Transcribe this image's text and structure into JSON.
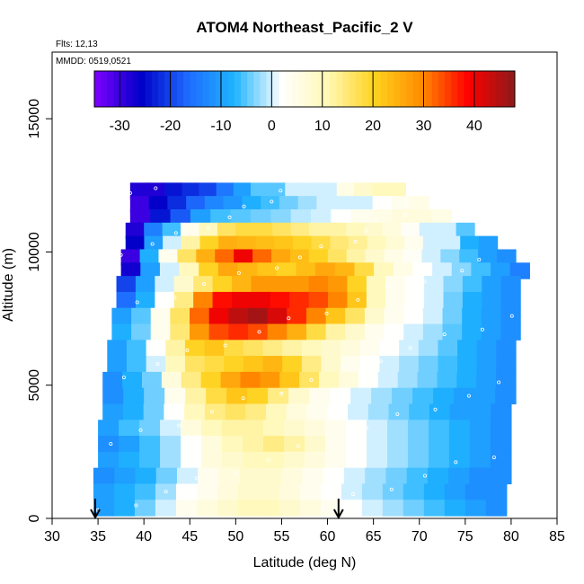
{
  "chart_data": {
    "type": "heatmap",
    "title": "ATOM4 Northeast_Pacific_2 V",
    "annotations": [
      "Flts: 12,13",
      "MMDD: 0519,0521"
    ],
    "xlabel": "Latitude (deg N)",
    "ylabel": "Altitude (m)",
    "xlim": [
      30,
      85
    ],
    "ylim": [
      0,
      17500
    ],
    "x_ticks": [
      30,
      35,
      40,
      45,
      50,
      55,
      60,
      65,
      70,
      75,
      80,
      85
    ],
    "y_ticks": [
      0,
      5000,
      10000,
      15000
    ],
    "grid": false,
    "colorbar": {
      "placement": "top-inside",
      "range": [
        -35,
        48
      ],
      "ticks": [
        -30,
        -20,
        -10,
        0,
        10,
        20,
        30,
        40
      ],
      "colors": [
        "#7f00ff",
        "#0000c8",
        "#1e6bff",
        "#1fb4ff",
        "#ffffff",
        "#fff8b4",
        "#ffd21e",
        "#ff8c00",
        "#ff0000",
        "#8c1a1a"
      ]
    },
    "markers": [
      {
        "name": "arrow-1",
        "x": 34.7,
        "y": 0
      },
      {
        "name": "arrow-2",
        "x": 61.2,
        "y": 0
      }
    ],
    "rows": [
      {
        "alt": 12300,
        "xmin": 38.5,
        "xmax": 68.5,
        "values": [
          -28,
          -28,
          -24,
          -22,
          -20,
          -15,
          -10,
          -5,
          -5,
          0,
          0,
          0,
          5,
          8,
          10,
          10
        ]
      },
      {
        "alt": 11800,
        "xmin": 38.5,
        "xmax": 71,
        "values": [
          -30,
          -26,
          -22,
          -17,
          -13,
          -11,
          -8,
          -6,
          -4,
          -2,
          0,
          0,
          0,
          2,
          4,
          5
        ]
      },
      {
        "alt": 11300,
        "xmin": 38.5,
        "xmax": 73.5,
        "values": [
          -30,
          -24,
          -18,
          -10,
          -6,
          -5,
          -4,
          -3,
          -1,
          0,
          2,
          4,
          5,
          6,
          6,
          5
        ]
      },
      {
        "alt": 10800,
        "xmin": 38,
        "xmax": 76,
        "values": [
          -28,
          -14,
          -6,
          4,
          10,
          16,
          18,
          18,
          16,
          14,
          12,
          12,
          10,
          8,
          6,
          3,
          0,
          0,
          -5
        ]
      },
      {
        "alt": 10300,
        "xmin": 38,
        "xmax": 78.5,
        "values": [
          -26,
          -10,
          0,
          12,
          20,
          25,
          24,
          23,
          22,
          20,
          18,
          15,
          13,
          10,
          7,
          4,
          0,
          0,
          -8,
          -10
        ]
      },
      {
        "alt": 9800,
        "xmin": 37.5,
        "xmax": 80.5,
        "values": [
          -30,
          -8,
          4,
          16,
          25,
          32,
          40,
          32,
          26,
          23,
          20,
          16,
          12,
          8,
          5,
          3,
          0,
          -3,
          -6,
          -10,
          -12
        ]
      },
      {
        "alt": 9300,
        "xmin": 37.5,
        "xmax": 82,
        "values": [
          -27,
          -10,
          0,
          10,
          20,
          26,
          24,
          22,
          20,
          23,
          26,
          24,
          18,
          10,
          5,
          2,
          0,
          -3,
          -6,
          -10,
          -14
        ]
      },
      {
        "alt": 8800,
        "xmin": 37,
        "xmax": 81,
        "values": [
          -20,
          -10,
          0,
          8,
          15,
          20,
          24,
          28,
          28,
          28,
          30,
          28,
          20,
          10,
          4,
          2,
          0,
          -3,
          -6,
          -10,
          -12
        ]
      },
      {
        "alt": 8200,
        "xmin": 37,
        "xmax": 81,
        "values": [
          -16,
          -8,
          2,
          14,
          30,
          38,
          40,
          40,
          38,
          36,
          34,
          30,
          22,
          10,
          4,
          2,
          0,
          -4,
          -8,
          -10,
          -12
        ]
      },
      {
        "alt": 7600,
        "xmin": 36.5,
        "xmax": 81,
        "values": [
          -10,
          -5,
          4,
          16,
          32,
          40,
          44,
          46,
          42,
          36,
          30,
          22,
          16,
          8,
          4,
          2,
          0,
          -4,
          -8,
          -10,
          -12
        ]
      },
      {
        "alt": 7000,
        "xmin": 36.5,
        "xmax": 81,
        "values": [
          -8,
          -4,
          4,
          15,
          28,
          34,
          36,
          34,
          30,
          25,
          18,
          12,
          8,
          4,
          2,
          0,
          -2,
          -5,
          -8,
          -10,
          -12
        ]
      },
      {
        "alt": 6400,
        "xmin": 36,
        "xmax": 80.5,
        "values": [
          -10,
          -6,
          2,
          12,
          20,
          22,
          18,
          16,
          14,
          12,
          10,
          8,
          6,
          4,
          2,
          0,
          -2,
          -5,
          -8,
          -10,
          -12
        ]
      },
      {
        "alt": 5800,
        "xmin": 36,
        "xmax": 80.5,
        "values": [
          -10,
          -6,
          0,
          10,
          16,
          18,
          20,
          22,
          24,
          20,
          14,
          8,
          4,
          2,
          0,
          -2,
          -4,
          -6,
          -8,
          -10,
          -12
        ]
      },
      {
        "alt": 5200,
        "xmin": 35.5,
        "xmax": 80.5,
        "values": [
          -12,
          -8,
          -4,
          6,
          14,
          20,
          26,
          30,
          28,
          22,
          16,
          10,
          6,
          2,
          0,
          -2,
          -4,
          -6,
          -8,
          -10,
          -12
        ]
      },
      {
        "alt": 4600,
        "xmin": 35.5,
        "xmax": 80.5,
        "values": [
          -12,
          -8,
          -4,
          4,
          12,
          18,
          22,
          20,
          14,
          8,
          4,
          2,
          0,
          -2,
          -4,
          -6,
          -8,
          -10,
          -10,
          -12
        ]
      },
      {
        "alt": 4000,
        "xmin": 35.5,
        "xmax": 80,
        "values": [
          -10,
          -8,
          -4,
          2,
          10,
          14,
          16,
          14,
          10,
          6,
          4,
          2,
          0,
          -2,
          -4,
          -6,
          -8,
          -10,
          -10,
          -12
        ]
      },
      {
        "alt": 3400,
        "xmin": 35,
        "xmax": 80,
        "values": [
          -10,
          -6,
          -4,
          0,
          6,
          10,
          12,
          12,
          10,
          8,
          6,
          4,
          2,
          0,
          -2,
          -4,
          -6,
          -8,
          -10,
          -12
        ]
      },
      {
        "alt": 2800,
        "xmin": 35,
        "xmax": 80,
        "values": [
          -12,
          -10,
          -6,
          -2,
          2,
          6,
          10,
          12,
          14,
          12,
          8,
          4,
          2,
          0,
          -2,
          -4,
          -6,
          -8,
          -10,
          -12
        ]
      },
      {
        "alt": 2200,
        "xmin": 35,
        "xmax": 80,
        "values": [
          -10,
          -8,
          -6,
          -2,
          2,
          6,
          8,
          10,
          10,
          8,
          6,
          4,
          2,
          0,
          -2,
          -4,
          -6,
          -8,
          -10,
          -12
        ]
      },
      {
        "alt": 1600,
        "xmin": 34.5,
        "xmax": 80,
        "values": [
          -12,
          -10,
          -8,
          -4,
          0,
          4,
          6,
          8,
          8,
          6,
          4,
          2,
          0,
          -2,
          -4,
          -6,
          -8,
          -10,
          -12,
          -12
        ]
      },
      {
        "alt": 1000,
        "xmin": 34.5,
        "xmax": 79.5,
        "values": [
          -10,
          -8,
          -6,
          -2,
          2,
          4,
          6,
          8,
          8,
          6,
          4,
          2,
          0,
          -2,
          -4,
          -6,
          -8,
          -10,
          -12,
          -12
        ]
      },
      {
        "alt": 400,
        "xmin": 34.5,
        "xmax": 79.5,
        "values": [
          -10,
          -8,
          -4,
          0,
          4,
          6,
          8,
          10,
          10,
          8,
          6,
          4,
          2,
          0,
          -2,
          -4,
          -6,
          -8,
          -10,
          -12
        ]
      }
    ]
  }
}
